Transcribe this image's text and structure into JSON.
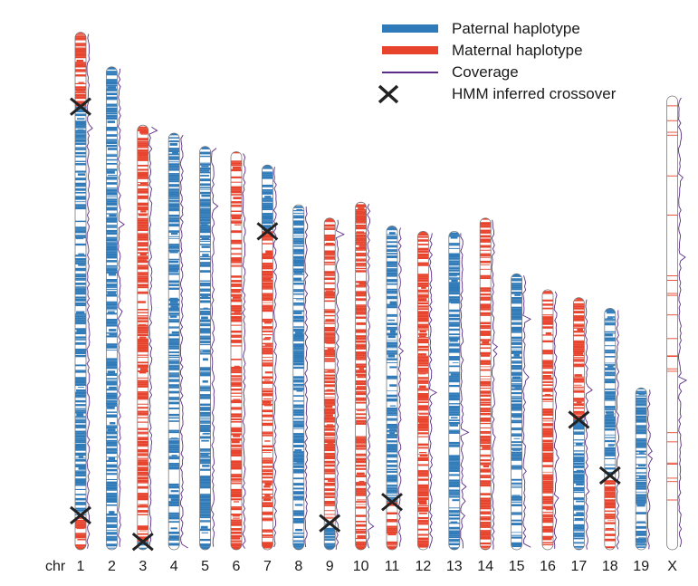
{
  "chart_data": {
    "type": "karyogram",
    "chr_prefix": "chr",
    "chromosomes": [
      {
        "name": "1",
        "length": 195,
        "crossovers": [
          28,
          182
        ],
        "segments": [
          {
            "hap": "maternal",
            "start": 0,
            "end": 28
          },
          {
            "hap": "paternal",
            "start": 28,
            "end": 182
          },
          {
            "hap": "maternal",
            "start": 182,
            "end": 195
          }
        ]
      },
      {
        "name": "2",
        "length": 182,
        "crossovers": [],
        "segments": [
          {
            "hap": "paternal",
            "start": 0,
            "end": 182
          }
        ]
      },
      {
        "name": "3",
        "length": 160,
        "crossovers": [
          157
        ],
        "segments": [
          {
            "hap": "maternal",
            "start": 0,
            "end": 157
          },
          {
            "hap": "paternal",
            "start": 157,
            "end": 160
          }
        ]
      },
      {
        "name": "4",
        "length": 157,
        "crossovers": [],
        "segments": [
          {
            "hap": "paternal",
            "start": 0,
            "end": 157
          }
        ]
      },
      {
        "name": "5",
        "length": 152,
        "crossovers": [],
        "segments": [
          {
            "hap": "paternal",
            "start": 0,
            "end": 152
          }
        ]
      },
      {
        "name": "6",
        "length": 150,
        "crossovers": [],
        "segments": [
          {
            "hap": "maternal",
            "start": 0,
            "end": 150
          }
        ]
      },
      {
        "name": "7",
        "length": 145,
        "crossovers": [
          25
        ],
        "segments": [
          {
            "hap": "paternal",
            "start": 0,
            "end": 25
          },
          {
            "hap": "maternal",
            "start": 25,
            "end": 145
          }
        ]
      },
      {
        "name": "8",
        "length": 130,
        "crossovers": [],
        "segments": [
          {
            "hap": "paternal",
            "start": 0,
            "end": 130
          }
        ]
      },
      {
        "name": "9",
        "length": 125,
        "crossovers": [
          115
        ],
        "segments": [
          {
            "hap": "maternal",
            "start": 0,
            "end": 115
          },
          {
            "hap": "paternal",
            "start": 115,
            "end": 125
          }
        ]
      },
      {
        "name": "10",
        "length": 131,
        "crossovers": [],
        "segments": [
          {
            "hap": "maternal",
            "start": 0,
            "end": 131
          }
        ]
      },
      {
        "name": "11",
        "length": 122,
        "crossovers": [
          104
        ],
        "segments": [
          {
            "hap": "paternal",
            "start": 0,
            "end": 104
          },
          {
            "hap": "maternal",
            "start": 104,
            "end": 122
          }
        ]
      },
      {
        "name": "12",
        "length": 120,
        "crossovers": [],
        "segments": [
          {
            "hap": "maternal",
            "start": 0,
            "end": 120
          }
        ]
      },
      {
        "name": "13",
        "length": 120,
        "crossovers": [],
        "segments": [
          {
            "hap": "paternal",
            "start": 0,
            "end": 120
          }
        ]
      },
      {
        "name": "14",
        "length": 125,
        "crossovers": [],
        "segments": [
          {
            "hap": "maternal",
            "start": 0,
            "end": 125
          }
        ]
      },
      {
        "name": "15",
        "length": 104,
        "crossovers": [],
        "segments": [
          {
            "hap": "paternal",
            "start": 0,
            "end": 104
          }
        ]
      },
      {
        "name": "16",
        "length": 98,
        "crossovers": [],
        "segments": [
          {
            "hap": "maternal",
            "start": 0,
            "end": 98
          }
        ]
      },
      {
        "name": "17",
        "length": 95,
        "crossovers": [
          46
        ],
        "segments": [
          {
            "hap": "maternal",
            "start": 0,
            "end": 46
          },
          {
            "hap": "paternal",
            "start": 46,
            "end": 95
          }
        ]
      },
      {
        "name": "18",
        "length": 91,
        "crossovers": [
          63
        ],
        "segments": [
          {
            "hap": "paternal",
            "start": 0,
            "end": 63
          },
          {
            "hap": "maternal",
            "start": 63,
            "end": 91
          }
        ]
      },
      {
        "name": "19",
        "length": 61,
        "crossovers": [],
        "segments": [
          {
            "hap": "paternal",
            "start": 0,
            "end": 61
          }
        ]
      },
      {
        "name": "X",
        "length": 171,
        "crossovers": [],
        "segments": [
          {
            "hap": "maternal",
            "start": 0,
            "end": 171
          }
        ]
      }
    ],
    "legend": [
      {
        "key": "paternal",
        "label": "Paternal haplotype"
      },
      {
        "key": "maternal",
        "label": "Maternal haplotype"
      },
      {
        "key": "coverage",
        "label": "Coverage"
      },
      {
        "key": "crossover",
        "label": "HMM inferred crossover"
      }
    ],
    "colors": {
      "paternal": "#2f7ab9",
      "maternal": "#e8432c",
      "coverage": "#5b2c86",
      "crossover": "#222222",
      "outline": "#7a7a7a"
    }
  }
}
